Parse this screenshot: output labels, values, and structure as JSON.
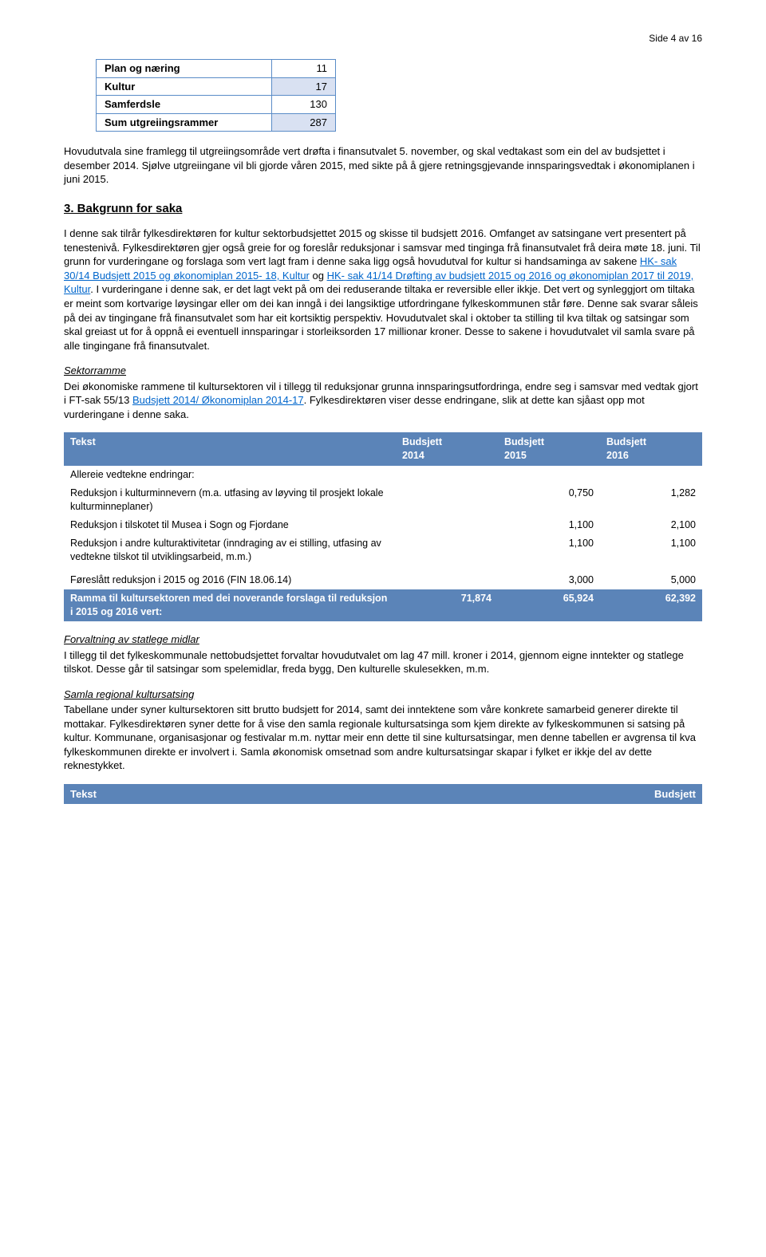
{
  "pageHeader": "Side 4 av 16",
  "summaryTable": {
    "rows": [
      {
        "label": "Plan og næring",
        "value": "11",
        "shaded": false
      },
      {
        "label": "Kultur",
        "value": "17",
        "shaded": true
      },
      {
        "label": "Samferdsle",
        "value": "130",
        "shaded": false
      },
      {
        "label": "Sum utgreiingsrammer",
        "value": "287",
        "shaded": true
      }
    ]
  },
  "para1": "Hovudutvala sine framlegg til utgreiingsområde vert drøfta i finansutvalet 5. november, og skal vedtakast som ein del av budsjettet i desember 2014. Sjølve utgreiingane vil bli gjorde våren 2015, med sikte på å gjere retningsgjevande innsparingsvedtak i økonomiplanen i juni 2015.",
  "section3": {
    "title": "3. Bakgrunn for saka",
    "bodyBeforeLink1": "I denne sak tilrår fylkesdirektøren for kultur sektorbudsjettet 2015 og skisse til budsjett 2016. Omfanget av satsingane vert presentert på tenestenivå. Fylkesdirektøren gjer også greie for og foreslår reduksjonar i samsvar med tinginga frå finansutvalet frå deira møte 18. juni. Til grunn for vurderingane og forslaga som vert lagt fram i denne saka ligg også hovudutval for kultur si handsaminga av sakene ",
    "link1": "HK- sak 30/14 Budsjett 2015 og økonomiplan 2015- 18, Kultur",
    "between1": " og ",
    "link2": "HK- sak 41/14 Drøfting av budsjett 2015 og 2016 og økonomiplan 2017 til 2019, Kultur",
    "bodyAfterLink2": ". I vurderingane i denne sak, er det lagt vekt på om dei reduserande tiltaka er reversible eller ikkje. Det vert og synleggjort om tiltaka er meint som kortvarige løysingar eller om dei kan inngå i dei langsiktige utfordringane fylkeskommunen står føre. Denne sak svarar såleis på dei av tingingane frå finansutvalet som har eit kortsiktig perspektiv. Hovudutvalet skal i oktober ta stilling til kva tiltak og satsingar som skal greiast ut for å oppnå ei eventuell innsparingar i storleiksorden 17 millionar kroner. Desse to sakene i hovudutvalet vil samla svare på alle tingingane frå finansutvalet."
  },
  "sektorramme": {
    "heading": "Sektorramme",
    "bodyBeforeLink": "Dei økonomiske rammene til kultursektoren vil i tillegg til reduksjonar grunna innsparingsutfordringa, endre seg i samsvar med vedtak gjort i FT-sak 55/13 ",
    "link": "Budsjett 2014/ Økonomiplan 2014-17",
    "bodyAfterLink": ". Fylkesdirektøren viser desse endringane, slik at dette kan sjåast opp mot vurderingane i denne saka."
  },
  "budgetTable": {
    "headers": [
      "Tekst",
      "Budsjett 2014",
      "Budsjett 2015",
      "Budsjett 2016"
    ],
    "subheading": "Allereie vedtekne endringar:",
    "rows": [
      {
        "label": "Reduksjon i kulturminnevern (m.a. utfasing av løyving til prosjekt lokale kulturminneplaner)",
        "c1": "",
        "c2": "0,750",
        "c3": "1,282"
      },
      {
        "label": "Reduksjon i tilskotet til Musea i Sogn og Fjordane",
        "c1": "",
        "c2": "1,100",
        "c3": "2,100"
      },
      {
        "label": "Reduksjon i andre kulturaktivitetar (inndraging av ei stilling, utfasing av vedtekne tilskot til utviklingsarbeid, m.m.)",
        "c1": "",
        "c2": "1,100",
        "c3": "1,100"
      }
    ],
    "proposedRow": {
      "label": "Føreslått reduksjon i 2015 og 2016 (FIN 18.06.14)",
      "c1": "",
      "c2": "3,000",
      "c3": "5,000"
    },
    "totalRow": {
      "label": "Ramma til kultursektoren med dei noverande forslaga til reduksjon i 2015 og 2016 vert:",
      "c1": "71,874",
      "c2": "65,924",
      "c3": "62,392"
    }
  },
  "forvaltning": {
    "heading": "Forvaltning av statlege midlar",
    "body": "I tillegg til det fylkeskommunale nettobudsjettet forvaltar hovudutvalet om lag 47 mill. kroner i 2014, gjennom eigne inntekter og statlege tilskot. Desse går til satsingar som spelemidlar, freda bygg, Den kulturelle skulesekken, m.m."
  },
  "samla": {
    "heading": "Samla regional kultursatsing",
    "body": "Tabellane under syner kultursektoren sitt brutto budsjett for 2014, samt dei inntektene som våre konkrete samarbeid generer direkte til mottakar. Fylkesdirektøren syner dette for å vise den samla regionale kultursatsinga som kjem direkte av fylkeskommunen si satsing på kultur. Kommunane, organisasjonar og festivalar m.m. nyttar meir enn dette til sine kultursatsingar, men denne tabellen er avgrensa til kva fylkeskommunen direkte er involvert i. Samla økonomisk omsetnad som andre kultursatsingar skapar i fylket er ikkje del av dette reknestykket."
  },
  "miniHeader": {
    "left": "Tekst",
    "right": "Budsjett"
  }
}
